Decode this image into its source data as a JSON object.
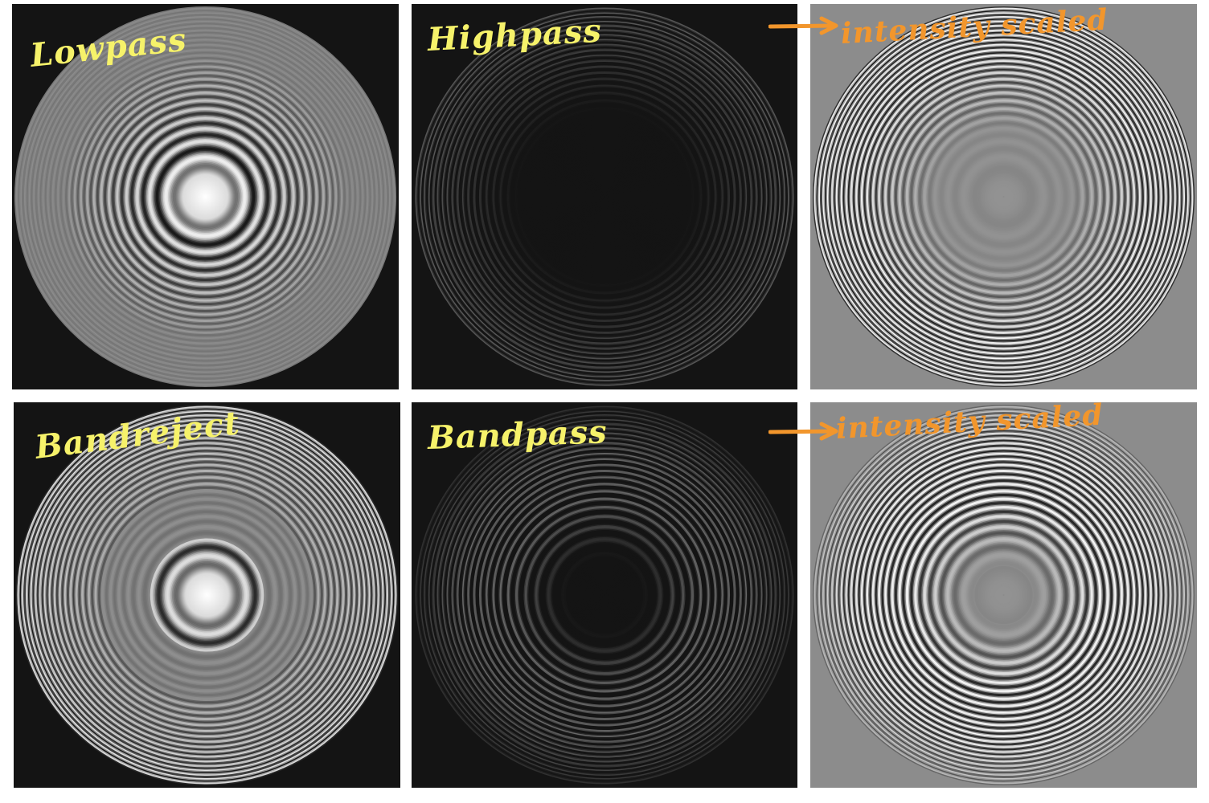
{
  "annotations": {
    "top_left": "Lowpass",
    "top_middle": "Highpass",
    "top_right": "intensity scaled",
    "bottom_left": "Bandreject",
    "bottom_middle": "Bandpass",
    "bottom_right": "intensity scaled"
  },
  "colors": {
    "label_yellow": "#f6f26a",
    "label_orange": "#f2962c",
    "dark_background": "#141414",
    "gray_background": "#8c8c8c"
  },
  "panels": [
    {
      "name": "Lowpass",
      "background": "dark",
      "pattern": "bright center with strong inner rings"
    },
    {
      "name": "Highpass",
      "background": "dark",
      "pattern": "thin faint outer rings"
    },
    {
      "name": "Highpass intensity scaled",
      "background": "gray",
      "pattern": "strong outer rings"
    },
    {
      "name": "Bandreject",
      "background": "dark",
      "pattern": "bright center, suppressed middle band"
    },
    {
      "name": "Bandpass",
      "background": "dark",
      "pattern": "middle band of thin rings"
    },
    {
      "name": "Bandpass intensity scaled",
      "background": "gray",
      "pattern": "strong middle rings"
    }
  ]
}
